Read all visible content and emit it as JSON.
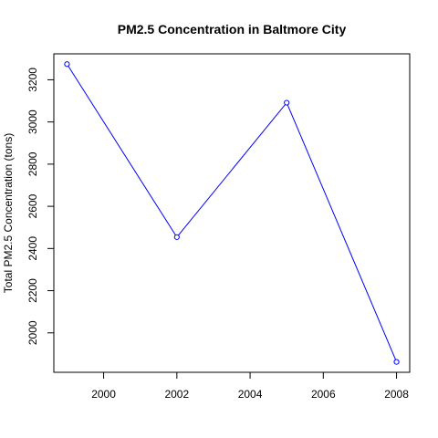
{
  "chart_data": {
    "type": "line",
    "title": "PM2.5 Concentration in Baltmore City",
    "xlabel": "",
    "ylabel": "Total PM2.5 Concentration (tons)",
    "x": [
      1999,
      2002,
      2005,
      2008
    ],
    "series": [
      {
        "values": [
          3274.18,
          2453.92,
          3091.35,
          1862.28
        ],
        "color": "#0000ff"
      }
    ],
    "xlim": [
      1998.64,
      2008.36
    ],
    "ylim": [
      1813,
      3323
    ],
    "xticks": [
      2000,
      2002,
      2004,
      2006,
      2008
    ],
    "xtick_labels": [
      "2000",
      "2002",
      "2004",
      "2006",
      "2008"
    ],
    "yticks": [
      2000,
      2200,
      2400,
      2600,
      2800,
      3000,
      3200
    ],
    "ytick_labels": [
      "2000",
      "2200",
      "2400",
      "2600",
      "2800",
      "3000",
      "3200"
    ],
    "grid": false,
    "marker": "open-circle"
  }
}
